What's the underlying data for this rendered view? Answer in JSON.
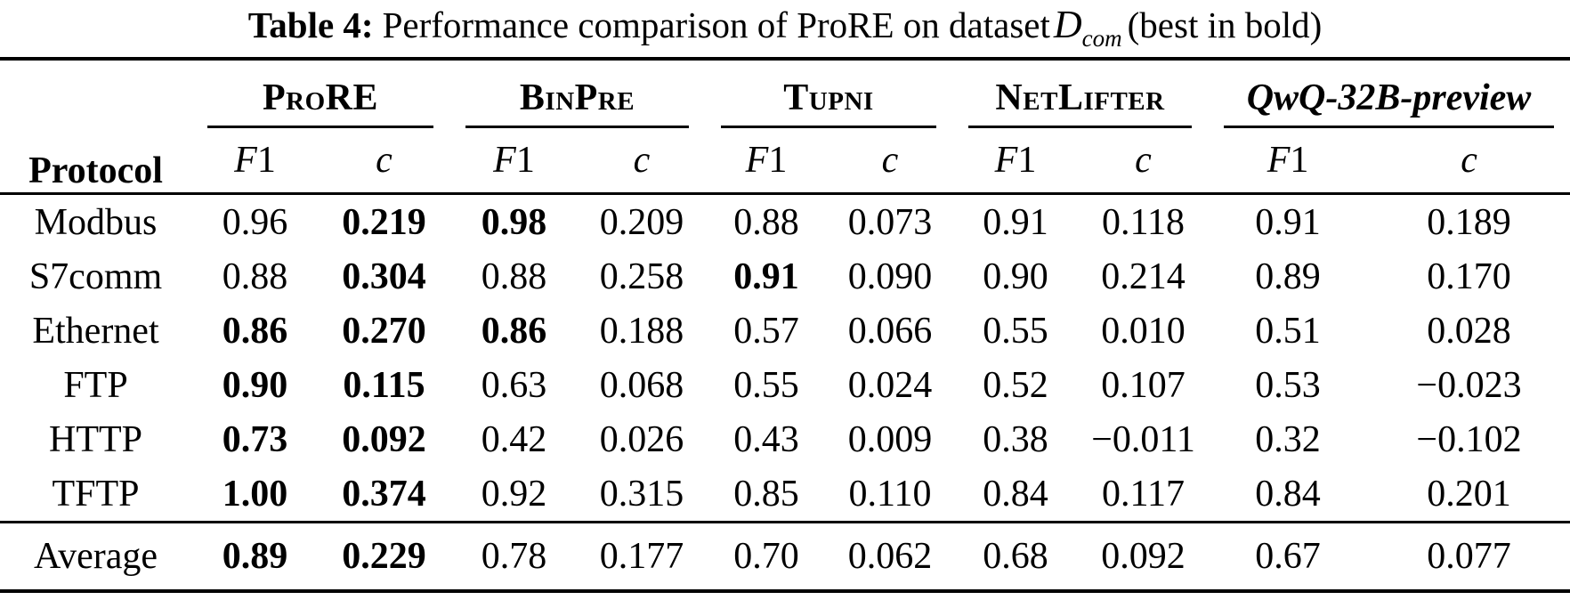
{
  "caption": {
    "tag": "Table 4:",
    "before": "Performance comparison of ProRE on dataset",
    "dataset_symbol": "D",
    "dataset_subscript": "com",
    "after": "(best in bold)"
  },
  "table": {
    "protocol_header": "Protocol",
    "groups": [
      {
        "label": "ProRE"
      },
      {
        "label": "BinPre"
      },
      {
        "label": "Tupni"
      },
      {
        "label": "NetLifter"
      },
      {
        "label": "QwQ-32B-preview"
      }
    ],
    "f1_letter": "F",
    "f1_digit": "1",
    "c_label": "c",
    "rows": [
      {
        "protocol": "Modbus",
        "cells": [
          {
            "v": "0.96",
            "b": false
          },
          {
            "v": "0.219",
            "b": true
          },
          {
            "v": "0.98",
            "b": true
          },
          {
            "v": "0.209",
            "b": false
          },
          {
            "v": "0.88",
            "b": false
          },
          {
            "v": "0.073",
            "b": false
          },
          {
            "v": "0.91",
            "b": false
          },
          {
            "v": "0.118",
            "b": false
          },
          {
            "v": "0.91",
            "b": false
          },
          {
            "v": "0.189",
            "b": false
          }
        ]
      },
      {
        "protocol": "S7comm",
        "cells": [
          {
            "v": "0.88",
            "b": false
          },
          {
            "v": "0.304",
            "b": true
          },
          {
            "v": "0.88",
            "b": false
          },
          {
            "v": "0.258",
            "b": false
          },
          {
            "v": "0.91",
            "b": true
          },
          {
            "v": "0.090",
            "b": false
          },
          {
            "v": "0.90",
            "b": false
          },
          {
            "v": "0.214",
            "b": false
          },
          {
            "v": "0.89",
            "b": false
          },
          {
            "v": "0.170",
            "b": false
          }
        ]
      },
      {
        "protocol": "Ethernet",
        "cells": [
          {
            "v": "0.86",
            "b": true
          },
          {
            "v": "0.270",
            "b": true
          },
          {
            "v": "0.86",
            "b": true
          },
          {
            "v": "0.188",
            "b": false
          },
          {
            "v": "0.57",
            "b": false
          },
          {
            "v": "0.066",
            "b": false
          },
          {
            "v": "0.55",
            "b": false
          },
          {
            "v": "0.010",
            "b": false
          },
          {
            "v": "0.51",
            "b": false
          },
          {
            "v": "0.028",
            "b": false
          }
        ]
      },
      {
        "protocol": "FTP",
        "cells": [
          {
            "v": "0.90",
            "b": true
          },
          {
            "v": "0.115",
            "b": true
          },
          {
            "v": "0.63",
            "b": false
          },
          {
            "v": "0.068",
            "b": false
          },
          {
            "v": "0.55",
            "b": false
          },
          {
            "v": "0.024",
            "b": false
          },
          {
            "v": "0.52",
            "b": false
          },
          {
            "v": "0.107",
            "b": false
          },
          {
            "v": "0.53",
            "b": false
          },
          {
            "v": "−0.023",
            "b": false
          }
        ]
      },
      {
        "protocol": "HTTP",
        "cells": [
          {
            "v": "0.73",
            "b": true
          },
          {
            "v": "0.092",
            "b": true
          },
          {
            "v": "0.42",
            "b": false
          },
          {
            "v": "0.026",
            "b": false
          },
          {
            "v": "0.43",
            "b": false
          },
          {
            "v": "0.009",
            "b": false
          },
          {
            "v": "0.38",
            "b": false
          },
          {
            "v": "−0.011",
            "b": false
          },
          {
            "v": "0.32",
            "b": false
          },
          {
            "v": "−0.102",
            "b": false
          }
        ]
      },
      {
        "protocol": "TFTP",
        "cells": [
          {
            "v": "1.00",
            "b": true
          },
          {
            "v": "0.374",
            "b": true
          },
          {
            "v": "0.92",
            "b": false
          },
          {
            "v": "0.315",
            "b": false
          },
          {
            "v": "0.85",
            "b": false
          },
          {
            "v": "0.110",
            "b": false
          },
          {
            "v": "0.84",
            "b": false
          },
          {
            "v": "0.117",
            "b": false
          },
          {
            "v": "0.84",
            "b": false
          },
          {
            "v": "0.201",
            "b": false
          }
        ]
      }
    ],
    "average": {
      "protocol": "Average",
      "cells": [
        {
          "v": "0.89",
          "b": true
        },
        {
          "v": "0.229",
          "b": true
        },
        {
          "v": "0.78",
          "b": false
        },
        {
          "v": "0.177",
          "b": false
        },
        {
          "v": "0.70",
          "b": false
        },
        {
          "v": "0.062",
          "b": false
        },
        {
          "v": "0.68",
          "b": false
        },
        {
          "v": "0.092",
          "b": false
        },
        {
          "v": "0.67",
          "b": false
        },
        {
          "v": "0.077",
          "b": false
        }
      ]
    }
  }
}
